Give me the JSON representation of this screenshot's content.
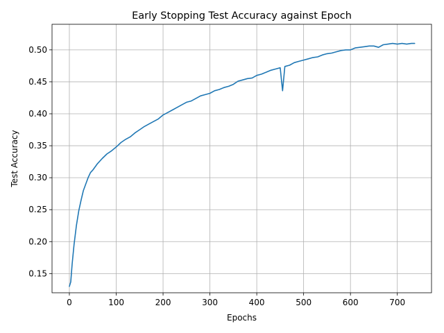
{
  "chart_data": {
    "type": "line",
    "title": "Early Stopping Test Accuracy against Epoch",
    "xlabel": "Epochs",
    "ylabel": "Test Accuracy",
    "xlim": [
      -37,
      773
    ],
    "ylim": [
      0.12,
      0.54
    ],
    "xticks": [
      0,
      100,
      200,
      300,
      400,
      500,
      600,
      700
    ],
    "xtick_labels": [
      "0",
      "100",
      "200",
      "300",
      "400",
      "500",
      "600",
      "700"
    ],
    "yticks": [
      0.15,
      0.2,
      0.25,
      0.3,
      0.35,
      0.4,
      0.45,
      0.5
    ],
    "ytick_labels": [
      "0.15",
      "0.20",
      "0.25",
      "0.30",
      "0.35",
      "0.40",
      "0.45",
      "0.50"
    ],
    "grid": true,
    "legend": "none",
    "series": [
      {
        "color": "#1f77b4",
        "x": [
          0,
          3,
          6,
          10,
          15,
          20,
          25,
          30,
          35,
          40,
          45,
          50,
          60,
          70,
          80,
          90,
          100,
          110,
          120,
          130,
          140,
          150,
          160,
          170,
          180,
          190,
          200,
          210,
          220,
          230,
          240,
          250,
          260,
          270,
          280,
          290,
          300,
          310,
          320,
          330,
          340,
          350,
          360,
          370,
          380,
          390,
          400,
          410,
          420,
          430,
          440,
          450,
          455,
          460,
          470,
          480,
          490,
          500,
          510,
          520,
          530,
          540,
          550,
          560,
          570,
          580,
          590,
          600,
          610,
          620,
          630,
          640,
          650,
          660,
          670,
          680,
          690,
          700,
          710,
          720,
          730,
          737
        ],
        "y": [
          0.13,
          0.137,
          0.165,
          0.195,
          0.225,
          0.248,
          0.265,
          0.28,
          0.29,
          0.3,
          0.308,
          0.312,
          0.322,
          0.33,
          0.337,
          0.342,
          0.348,
          0.355,
          0.36,
          0.364,
          0.37,
          0.375,
          0.38,
          0.384,
          0.388,
          0.392,
          0.398,
          0.402,
          0.406,
          0.41,
          0.414,
          0.418,
          0.42,
          0.424,
          0.428,
          0.43,
          0.432,
          0.436,
          0.438,
          0.441,
          0.443,
          0.446,
          0.451,
          0.453,
          0.455,
          0.456,
          0.46,
          0.462,
          0.465,
          0.468,
          0.47,
          0.472,
          0.436,
          0.474,
          0.476,
          0.48,
          0.482,
          0.484,
          0.486,
          0.488,
          0.489,
          0.492,
          0.494,
          0.495,
          0.497,
          0.499,
          0.5,
          0.5,
          0.503,
          0.504,
          0.505,
          0.506,
          0.506,
          0.504,
          0.508,
          0.509,
          0.51,
          0.509,
          0.51,
          0.509,
          0.51,
          0.51
        ]
      }
    ]
  }
}
